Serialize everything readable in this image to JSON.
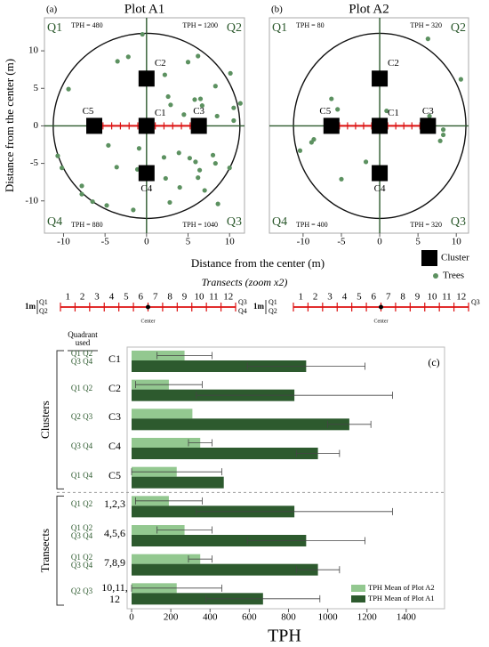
{
  "chart_data": [
    {
      "type": "scatter",
      "panel": "(a)",
      "title": "Plot A1",
      "xlim": [
        -12.3,
        11.8
      ],
      "ylim": [
        -14.3,
        14.4
      ],
      "xticks": [
        -10,
        -5,
        0,
        5,
        10
      ],
      "yticks": [
        10,
        5,
        0,
        -5,
        -10
      ],
      "quadrants": [
        "Q1",
        "Q2",
        "Q3",
        "Q4"
      ],
      "tph_labels": [
        "TPH = 480",
        "TPH = 1200",
        "TPH = 1040",
        "TPH = 880"
      ],
      "clusters": {
        "name": "Cluster",
        "labels": [
          "C1",
          "C2",
          "C3",
          "C4",
          "C5"
        ],
        "x": [
          0,
          0,
          6.3,
          0,
          -6.3
        ],
        "y": [
          0,
          6.3,
          0,
          -6.3,
          0
        ]
      },
      "series": [
        {
          "name": "Trees",
          "color": "#5c9160",
          "x": [
            -0.5,
            -2.2,
            -3.5,
            2.2,
            5.0,
            6.2,
            10.1,
            8.3,
            -9.4,
            2.6,
            2.9,
            5.8,
            6.5,
            6.7,
            4.5,
            8.5,
            10.5,
            11.3,
            10.5,
            -6.1,
            -10.7,
            -10.2,
            -4.6,
            -3.6,
            -0.9,
            2.1,
            3.9,
            5.2,
            5.9,
            6.4,
            8.0,
            8.3,
            10.0,
            2.3,
            4.0,
            7.0,
            -7.8,
            -7.8,
            -6.5,
            -4.8,
            -1.6,
            2.8,
            8.6,
            6.2,
            -1.1
          ],
          "y": [
            12.2,
            9.2,
            8.6,
            6.8,
            8.5,
            9.3,
            7.0,
            5.3,
            4.9,
            3.9,
            2.8,
            3.5,
            3.6,
            2.7,
            1.5,
            1.3,
            2.4,
            3.0,
            0.7,
            0.6,
            -4.0,
            -5.6,
            -2.6,
            -5.5,
            -3.0,
            -4.2,
            -3.6,
            -4.3,
            -4.8,
            -5.9,
            -3.9,
            -5.0,
            -5.6,
            -7.0,
            -8.2,
            -8.6,
            -8.0,
            -9.1,
            -10.1,
            -10.6,
            -11.2,
            -10.2,
            -10.4,
            -6.9,
            -5.8
          ]
        }
      ]
    },
    {
      "type": "scatter",
      "panel": "(b)",
      "title": "Plot A2",
      "xlim": [
        -14.4,
        11.6
      ],
      "ylim": [
        -14.3,
        14.4
      ],
      "xticks": [
        -10,
        -5,
        0,
        5,
        10
      ],
      "quadrants": [
        "Q1",
        "Q2",
        "Q3",
        "Q4"
      ],
      "tph_labels": [
        "TPH = 80",
        "TPH = 320",
        "TPH = 320",
        "TPH = 400"
      ],
      "clusters": {
        "labels": [
          "C1",
          "C2",
          "C3",
          "C4",
          "C5"
        ],
        "x": [
          0,
          0,
          6.3,
          0,
          -6.3
        ],
        "y": [
          0,
          6.3,
          0,
          -6.3,
          0
        ]
      },
      "series": [
        {
          "color": "#5c9160",
          "x": [
            6.3,
            10.6,
            -6.3,
            -5.5,
            0.9,
            6.5,
            8.3,
            8.3,
            7.9,
            -8.6,
            -8.9,
            -10.4,
            -1.8,
            -5.0
          ],
          "y": [
            11.6,
            6.2,
            3.6,
            2.2,
            2.0,
            1.3,
            -0.5,
            -1.2,
            -2.0,
            -1.8,
            -2.2,
            -3.3,
            -4.8,
            -7.1
          ]
        }
      ]
    },
    {
      "type": "bar",
      "orientation": "horizontal",
      "panel": "(c)",
      "xlabel": "TPH",
      "categories": [
        "C1",
        "C2",
        "C3",
        "C4",
        "C5",
        "1,2,3",
        "4,5,6",
        "7,8,9",
        "10,11, 12"
      ],
      "quadrant_header": "Quadrant used",
      "quadrants_used": [
        "Q1 Q2 Q3 Q4",
        "Q1 Q2",
        "Q2 Q3",
        "Q3 Q4",
        "Q1 Q4",
        "Q1 Q2",
        "Q1 Q2 Q3 Q4",
        "Q1 Q2 Q3 Q4",
        "Q2 Q3"
      ],
      "groups": [
        "Clusters",
        "Transects"
      ],
      "xlim": [
        0,
        1600
      ],
      "xticks": [
        0,
        200,
        400,
        600,
        800,
        1000,
        1200,
        1400
      ],
      "series": [
        {
          "name": "TPH Mean of Plot A2",
          "color": "#93c890",
          "values": [
            270,
            190,
            310,
            350,
            230,
            190,
            270,
            350,
            230
          ],
          "errors": [
            140,
            170,
            null,
            60,
            230,
            170,
            140,
            60,
            230
          ]
        },
        {
          "name": "TPH Mean of Plot A1",
          "color": "#2d5a2e",
          "values": [
            890,
            830,
            1110,
            950,
            470,
            830,
            890,
            950,
            670
          ],
          "errors": [
            300,
            500,
            110,
            110,
            null,
            500,
            300,
            110,
            290
          ]
        }
      ]
    }
  ],
  "shared": {
    "ylabel": "Distance from the center (m)",
    "xlabel": "Distance from the center (m)"
  },
  "transects": {
    "title": "Transects (zoom x2)",
    "diagrams": [
      {
        "scale": "1m",
        "left": [
          "Q1",
          "Q2"
        ],
        "numbers": [
          1,
          2,
          3,
          4,
          5,
          6,
          7,
          8,
          9,
          10,
          11,
          12
        ],
        "right": [
          "Q3",
          "Q4"
        ],
        "center": "Center"
      },
      {
        "scale": "1m",
        "left": [
          "Q1",
          "Q2"
        ],
        "numbers": [
          1,
          2,
          3,
          4,
          5,
          6,
          7,
          8,
          9,
          10,
          11,
          12
        ],
        "right": [
          "Q3"
        ],
        "center": "Center"
      }
    ]
  }
}
